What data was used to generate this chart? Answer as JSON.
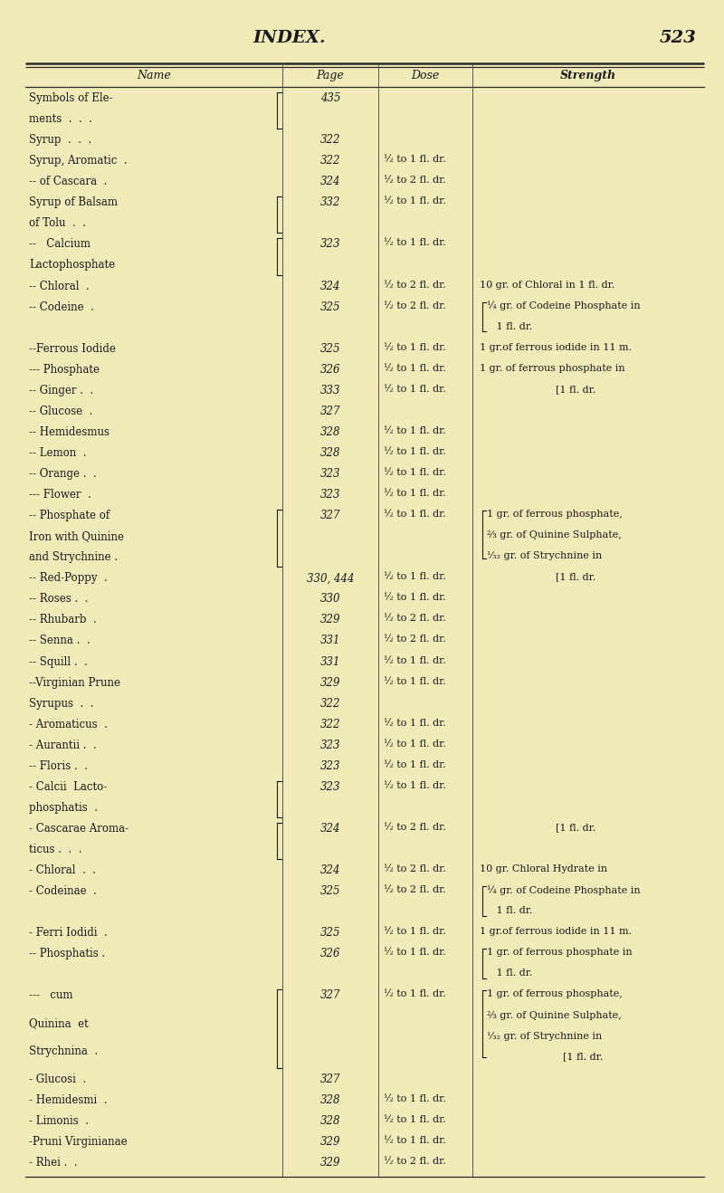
{
  "title": "INDEX.",
  "page_number": "523",
  "bg_color": "#f0ebb8",
  "text_color": "#1a1a1a",
  "col_headers": [
    "Name",
    "Page",
    "Dose",
    "Strength"
  ],
  "rows": [
    {
      "name": "Symbols of Ele-\nments  .  .  .",
      "page": "435",
      "dose": "",
      "strength": "",
      "name_bracket": true
    },
    {
      "name": "Syrup  .  .  .",
      "page": "322",
      "dose": "",
      "strength": ""
    },
    {
      "name": "Syrup, Aromatic  .",
      "page": "322",
      "dose": "½ to 1 fl. dr.",
      "strength": ""
    },
    {
      "name": "-- of Cascara  .",
      "page": "324",
      "dose": "½ to 2 fl. dr.",
      "strength": ""
    },
    {
      "name": "Syrup of Balsam\nof Tolu  .  .",
      "page": "332",
      "dose": "½ to 1 fl. dr.",
      "strength": "",
      "name_bracket": true
    },
    {
      "name": "--   Calcium\nLactophosphate",
      "page": "323",
      "dose": "½ to 1 fl. dr.",
      "strength": "",
      "name_bracket": true
    },
    {
      "name": "-- Chloral  .",
      "page": "324",
      "dose": "½ to 2 fl. dr.",
      "strength": "10 gr. of Chloral in 1 fl. dr."
    },
    {
      "name": "-- Codeine  .",
      "page": "325",
      "dose": "½ to 2 fl. dr.",
      "strength": "¼ gr. of Codeine Phosphate in\n   1 fl. dr.",
      "str_bracket": true
    },
    {
      "name": "--Ferrous Iodide",
      "page": "325",
      "dose": "½ to 1 fl. dr.",
      "strength": "1 gr.of ferrous iodide in 11 m."
    },
    {
      "name": "--- Phosphate",
      "page": "326",
      "dose": "½ to 1 fl. dr.",
      "strength": "1 gr. of ferrous phosphate in"
    },
    {
      "name": "-- Ginger .  .",
      "page": "333",
      "dose": "½ to 1 fl. dr.",
      "strength": "                        [1 fl. dr."
    },
    {
      "name": "-- Glucose  .",
      "page": "327",
      "dose": "",
      "strength": ""
    },
    {
      "name": "-- Hemidesmus",
      "page": "328",
      "dose": "½ to 1 fl. dr.",
      "strength": ""
    },
    {
      "name": "-- Lemon  .",
      "page": "328",
      "dose": "½ to 1 fl. dr.",
      "strength": ""
    },
    {
      "name": "-- Orange .  .",
      "page": "323",
      "dose": "½ to 1 fl. dr.",
      "strength": ""
    },
    {
      "name": "--- Flower  .",
      "page": "323",
      "dose": "½ to 1 fl. dr.",
      "strength": ""
    },
    {
      "name": "-- Phosphate of\nIron with Quinine\nand Strychnine .",
      "page": "327",
      "dose": "½ to 1 fl. dr.",
      "strength": "1 gr. of ferrous phosphate,\n⅔ gr. of Quinine Sulphate,\n¹⁄₃₂ gr. of Strychnine in",
      "str_bracket": true,
      "name_bracket": true
    },
    {
      "name": "-- Red-Poppy  .",
      "page": "330, 444",
      "dose": "½ to 1 fl. dr.",
      "strength": "                        [1 fl. dr."
    },
    {
      "name": "-- Roses .  .",
      "page": "330",
      "dose": "½ to 1 fl. dr.",
      "strength": ""
    },
    {
      "name": "-- Rhubarb  .",
      "page": "329",
      "dose": "½ to 2 fl. dr.",
      "strength": ""
    },
    {
      "name": "-- Senna .  .",
      "page": "331",
      "dose": "½ to 2 fl. dr.",
      "strength": ""
    },
    {
      "name": "-- Squill .  .",
      "page": "331",
      "dose": "½ to 1 fl. dr.",
      "strength": ""
    },
    {
      "name": "--Virginian Prune",
      "page": "329",
      "dose": "½ to 1 fl. dr.",
      "strength": ""
    },
    {
      "name": "Syrupus  .  .",
      "page": "322",
      "dose": "",
      "strength": ""
    },
    {
      "name": "- Aromaticus  .",
      "page": "322",
      "dose": "½ to 1 fl. dr.",
      "strength": ""
    },
    {
      "name": "- Aurantii .  .",
      "page": "323",
      "dose": "½ to 1 fl. dr.",
      "strength": ""
    },
    {
      "name": "-- Floris .  .",
      "page": "323",
      "dose": "½ to 1 fl. dr.",
      "strength": ""
    },
    {
      "name": "- Calcii  Lacto-\nphosphatis  .",
      "page": "323",
      "dose": "½ to 1 fl. dr.",
      "strength": "",
      "name_bracket": true
    },
    {
      "name": "- Cascarae Aroma-\nticus .  .  .",
      "page": "324",
      "dose": "½ to 2 fl. dr.",
      "strength": "                        [1 fl. dr.",
      "name_bracket": true
    },
    {
      "name": "- Chloral  .  .",
      "page": "324",
      "dose": "½ to 2 fl. dr.",
      "strength": "10 gr. Chloral Hydrate in"
    },
    {
      "name": "- Codeinae  .",
      "page": "325",
      "dose": "½ to 2 fl. dr.",
      "strength": "¼ gr. of Codeine Phosphate in\n   1 fl. dr.",
      "str_bracket": true
    },
    {
      "name": "- Ferri Iodidi  .",
      "page": "325",
      "dose": "½ to 1 fl. dr.",
      "strength": "1 gr.of ferrous iodide in 11 m."
    },
    {
      "name": "-- Phosphatis .",
      "page": "326",
      "dose": "½ to 1 fl. dr.",
      "strength": "1 gr. of ferrous phosphate in\n   1 fl. dr.",
      "str_bracket": true
    },
    {
      "name": "---   cum\nQuinina  et\nStrychnina  .",
      "page": "327",
      "dose": "½ to 1 fl. dr.",
      "strength": "1 gr. of ferrous phosphate,\n⅔ gr. of Quinine Sulphate,\n¹⁄₃₂ gr. of Strychnine in\n                        [1 fl. dr.",
      "str_bracket": true,
      "name_bracket": true
    },
    {
      "name": "- Glucosi  .",
      "page": "327",
      "dose": "",
      "strength": ""
    },
    {
      "name": "- Hemidesmi  .",
      "page": "328",
      "dose": "½ to 1 fl. dr.",
      "strength": ""
    },
    {
      "name": "- Limonis  .",
      "page": "328",
      "dose": "½ to 1 fl. dr.",
      "strength": ""
    },
    {
      "name": "-Pruni Virginianae",
      "page": "329",
      "dose": "½ to 1 fl. dr.",
      "strength": ""
    },
    {
      "name": "- Rhei .  .",
      "page": "329",
      "dose": "½ to 2 fl. dr.",
      "strength": ""
    }
  ]
}
